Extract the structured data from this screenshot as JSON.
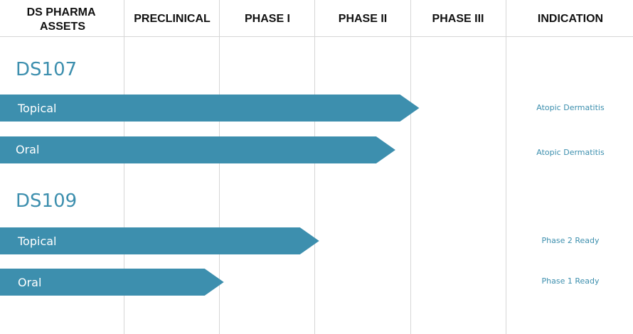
{
  "colors": {
    "bar": "#3d8fae",
    "accent_text": "#3d8fae",
    "grid": "#d6d6d6",
    "header_text": "#111111"
  },
  "header": {
    "assets": [
      "DS PHARMA",
      "ASSETS"
    ],
    "preclinical": "PRECLINICAL",
    "phase1": "PHASE I",
    "phase2": "PHASE II",
    "phase3": "PHASE III",
    "indication": "INDICATION"
  },
  "chart_data": {
    "type": "bar",
    "orientation": "horizontal",
    "stages": [
      "PRECLINICAL",
      "PHASE I",
      "PHASE II",
      "PHASE III"
    ],
    "progress_unit": "stages completed",
    "assets": [
      {
        "name": "DS107",
        "programs": [
          {
            "label": "Topical",
            "progress": 3.1,
            "indication": "Atopic Dermatitis"
          },
          {
            "label": "Oral",
            "progress": 2.85,
            "indication": "Atopic Dermatitis"
          }
        ]
      },
      {
        "name": "DS109",
        "programs": [
          {
            "label": "Topical",
            "progress": 2.05,
            "indication": "Phase 2 Ready"
          },
          {
            "label": "Oral",
            "progress": 1.05,
            "indication": "Phase 1 Ready"
          }
        ]
      }
    ]
  }
}
